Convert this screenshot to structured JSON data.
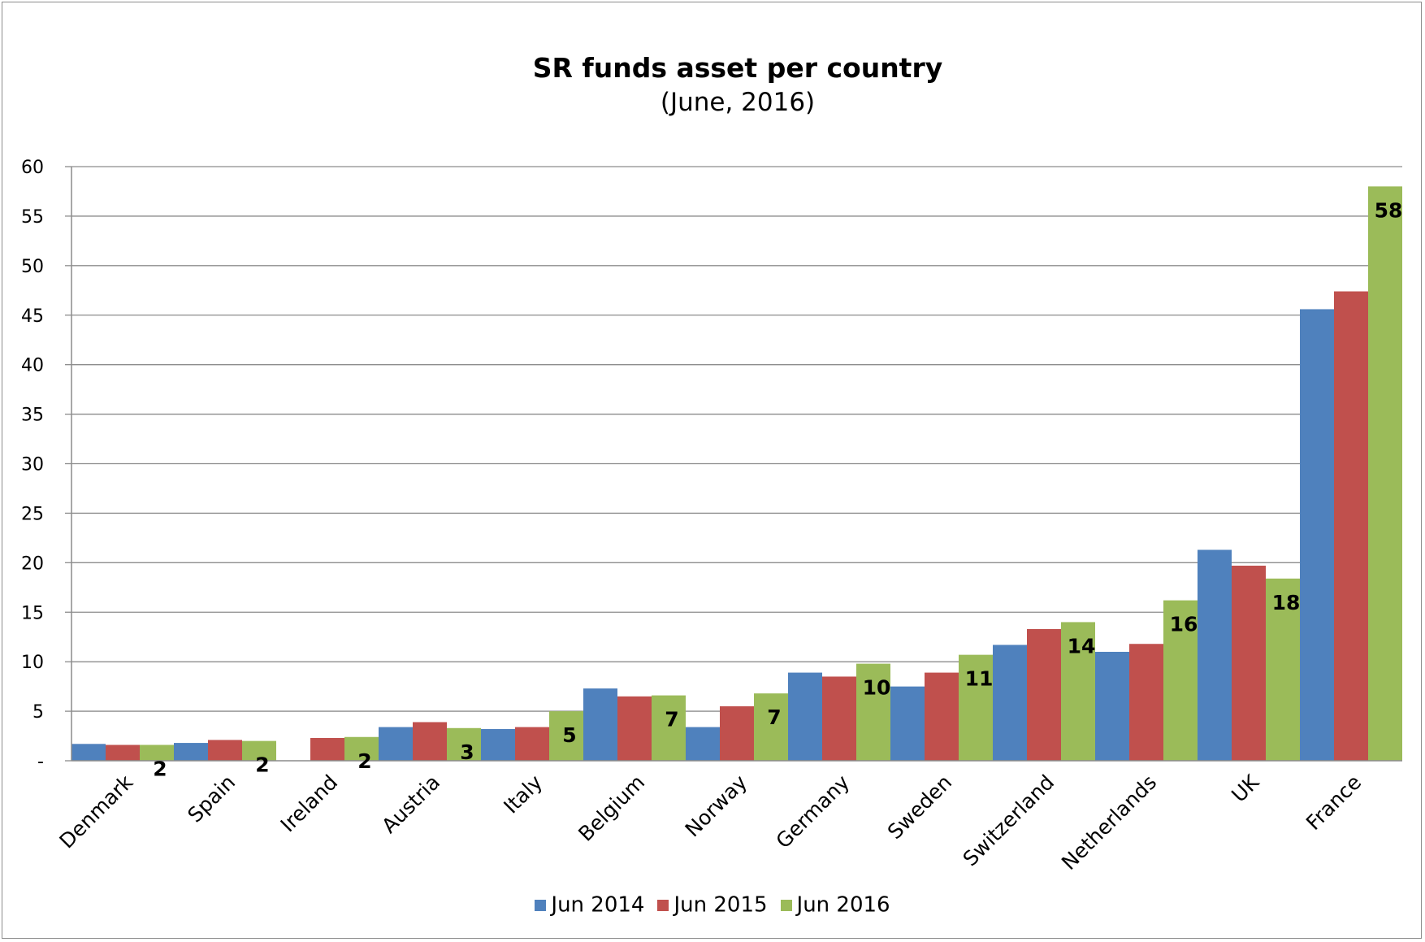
{
  "chart_data": {
    "type": "bar",
    "title": "SR funds asset per country",
    "subtitle": "(June, 2016)",
    "categories": [
      "Denmark",
      "Spain",
      "Ireland",
      "Austria",
      "Italy",
      "Belgium",
      "Norway",
      "Germany",
      "Sweden",
      "Switzerland",
      "Netherlands",
      "UK",
      "France"
    ],
    "series": [
      {
        "name": "Jun 2014",
        "color": "#4f81bd",
        "values": [
          1.7,
          1.8,
          0,
          3.4,
          3.2,
          7.3,
          3.4,
          8.9,
          7.5,
          11.7,
          11.0,
          21.3,
          45.6
        ]
      },
      {
        "name": "Jun 2015",
        "color": "#c0504d",
        "values": [
          1.6,
          2.1,
          2.3,
          3.9,
          3.4,
          6.5,
          5.5,
          8.5,
          8.9,
          13.3,
          11.8,
          19.7,
          47.4
        ]
      },
      {
        "name": "Jun 2016",
        "color": "#9bbb59",
        "values": [
          1.6,
          2.0,
          2.4,
          3.3,
          5.0,
          6.6,
          6.8,
          9.8,
          10.7,
          14.0,
          16.2,
          18.4,
          58.0
        ]
      }
    ],
    "data_labels": {
      "series": "Jun 2016",
      "labels": [
        "2",
        "2",
        "2",
        "3",
        "5",
        "7",
        "7",
        "10",
        "11",
        "14",
        "16",
        "18",
        "58"
      ]
    },
    "y_ticks": [
      "-",
      "5",
      "10",
      "15",
      "20",
      "25",
      "30",
      "35",
      "40",
      "45",
      "50",
      "55",
      "60"
    ],
    "ylim": [
      0,
      60
    ],
    "grid": true,
    "legend_position": "bottom"
  }
}
